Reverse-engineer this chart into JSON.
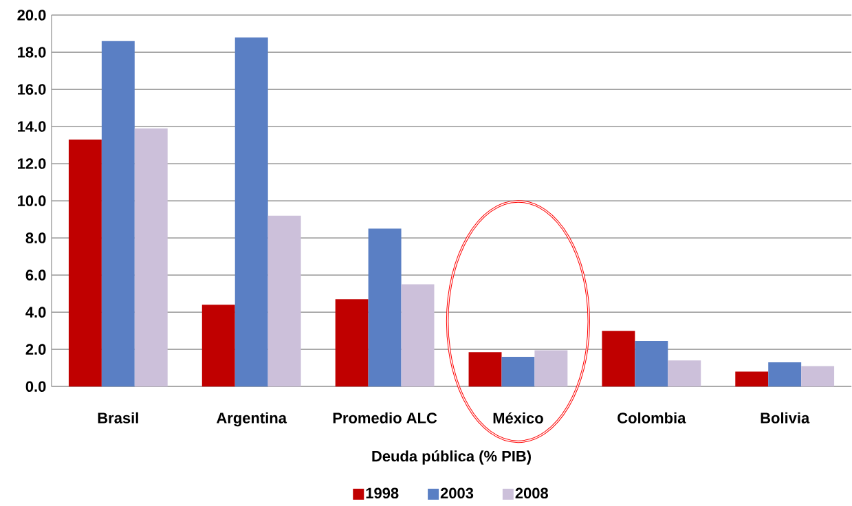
{
  "chart_data": {
    "type": "bar",
    "xlabel": "Deuda pública (% PIB)",
    "categories": [
      "Brasil",
      "Argentina",
      "Promedio ALC",
      "México",
      "Colombia",
      "Bolivia"
    ],
    "series": [
      {
        "name": "1998",
        "color": "#c00000",
        "values": [
          13.3,
          4.4,
          4.7,
          1.85,
          3.0,
          0.8
        ]
      },
      {
        "name": "2003",
        "color": "#5a7fc4",
        "values": [
          18.6,
          18.8,
          8.5,
          1.6,
          2.45,
          1.3
        ]
      },
      {
        "name": "2008",
        "color": "#ccc0da",
        "values": [
          13.9,
          9.2,
          5.5,
          1.95,
          1.4,
          1.1
        ]
      }
    ],
    "ylim": [
      0,
      20
    ],
    "yticks": [
      {
        "value": 0,
        "label": "0.0"
      },
      {
        "value": 2,
        "label": "2.0"
      },
      {
        "value": 4,
        "label": "4.0"
      },
      {
        "value": 6,
        "label": "6.0"
      },
      {
        "value": 8,
        "label": "8.0"
      },
      {
        "value": 10,
        "label": "10.0"
      },
      {
        "value": 12,
        "label": "12.0"
      },
      {
        "value": 14,
        "label": "14.0"
      },
      {
        "value": 16,
        "label": "16.0"
      },
      {
        "value": 18,
        "label": "18.0"
      },
      {
        "value": 20,
        "label": "20.0"
      }
    ],
    "grid": "y",
    "legend": "bottom"
  }
}
